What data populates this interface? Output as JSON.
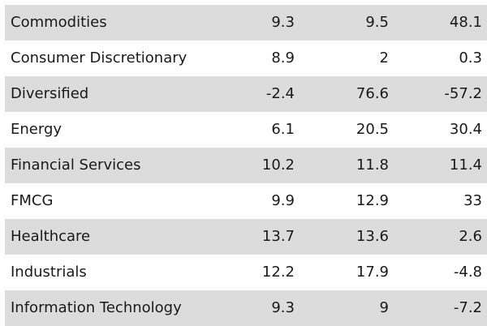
{
  "chart_data": {
    "type": "table",
    "columns": [
      "",
      "",
      "",
      ""
    ],
    "rows": [
      [
        "Commodities",
        "9.3",
        "9.5",
        "48.1"
      ],
      [
        "Consumer Discretionary",
        "8.9",
        "2",
        "0.3"
      ],
      [
        "Diversified",
        "-2.4",
        "76.6",
        "-57.2"
      ],
      [
        "Energy",
        "6.1",
        "20.5",
        "30.4"
      ],
      [
        "Financial Services",
        "10.2",
        "11.8",
        "11.4"
      ],
      [
        "FMCG",
        "9.9",
        "12.9",
        "33"
      ],
      [
        "Healthcare",
        "13.7",
        "13.6",
        "2.6"
      ],
      [
        "Industrials",
        "12.2",
        "17.9",
        "-4.8"
      ],
      [
        "Information Technology",
        "9.3",
        "9",
        "-7.2"
      ]
    ],
    "stripe_color": "#dcdcdc"
  }
}
